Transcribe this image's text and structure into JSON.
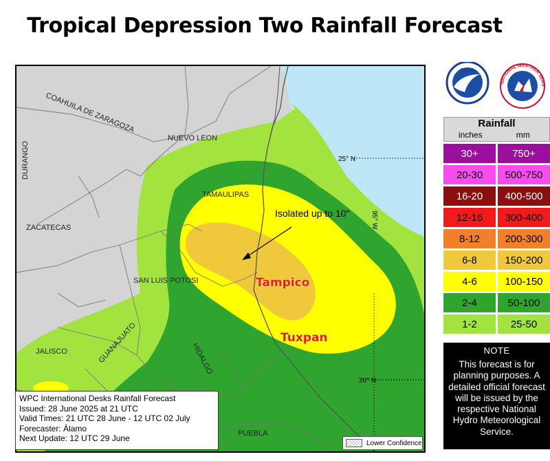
{
  "title": "Tropical Depression Two Rainfall Forecast",
  "map": {
    "region_labels": [
      "COAHUILA DE ZARAGOZA",
      "NUEVO LEON",
      "DURANGO",
      "TAMAULIPAS",
      "ZACATECAS",
      "SAN LUIS POTOSI",
      "JALISCO",
      "GUANAJUATO",
      "HIDALGO",
      "PUEBLA"
    ],
    "lat_labels": [
      "25° N",
      "20° N"
    ],
    "lon_label": "95° W",
    "annotation": "Isolated up to 10\"",
    "cities": [
      "Tampico",
      "Tuxpan"
    ],
    "colors": {
      "land": "#d4d4d4",
      "ocean": "#bde6f7",
      "rain_1_2": "#a3e33f",
      "rain_2_4": "#2fa52f",
      "rain_4_6": "#ffff00",
      "rain_6_8": "#f0c83c",
      "city": "#e8201a"
    }
  },
  "info": {
    "line1": "WPC International Desks Rainfall Forecast",
    "line2": "Issued: 28 June 2025 at 21 UTC",
    "line3": "Valid Times: 21 UTC 28 June - 12 UTC 02 July",
    "line4": "Forecaster: Álamo",
    "line5": "Next Update: 12 UTC 29 June"
  },
  "low_confidence_label": "Lower Confidence",
  "logos": {
    "left": "noaa-logo",
    "right": "nws-logo",
    "nws_ring_text": "NATIONAL WEATHER SERVICE"
  },
  "legend": {
    "title": "Rainfall",
    "unit_in": "inches",
    "unit_mm": "mm",
    "rows": [
      {
        "in": "30+",
        "mm": "750+",
        "color": "#9a0f9e",
        "text": "#ffffff"
      },
      {
        "in": "20-30",
        "mm": "500-750",
        "color": "#f74cf0",
        "text": "#000000"
      },
      {
        "in": "16-20",
        "mm": "400-500",
        "color": "#8b0f0f",
        "text": "#ffffff"
      },
      {
        "in": "12-16",
        "mm": "300-400",
        "color": "#f21a1a",
        "text": "#000000"
      },
      {
        "in": "8-12",
        "mm": "200-300",
        "color": "#f2802a",
        "text": "#000000"
      },
      {
        "in": "6-8",
        "mm": "150-200",
        "color": "#f0c83c",
        "text": "#000000"
      },
      {
        "in": "4-6",
        "mm": "100-150",
        "color": "#ffff00",
        "text": "#000000"
      },
      {
        "in": "2-4",
        "mm": "50-100",
        "color": "#2fa52f",
        "text": "#000000"
      },
      {
        "in": "1-2",
        "mm": "25-50",
        "color": "#a3e33f",
        "text": "#000000"
      }
    ]
  },
  "note": {
    "title": "NOTE",
    "body": "This forecast is for planning purposes. A detailed official forecast will be issued by the respective National Hydro Meteorological Service."
  }
}
